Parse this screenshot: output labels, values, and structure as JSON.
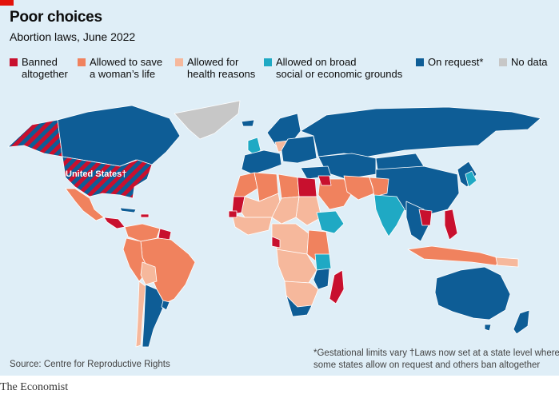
{
  "header": {
    "title": "Poor choices",
    "subtitle": "Abortion laws, June 2022"
  },
  "legend": [
    {
      "label1": "Banned",
      "label2": "altogether",
      "color": "#c8102e"
    },
    {
      "label1": "Allowed to save",
      "label2": "a woman’s life",
      "color": "#f0825e"
    },
    {
      "label1": "Allowed for",
      "label2": "health reasons",
      "color": "#f6b89c"
    },
    {
      "label1": "Allowed on broad",
      "label2": "social or economic grounds",
      "color": "#1fa9c4"
    },
    {
      "label1": "On request*",
      "label2": "",
      "color": "#0e5d96"
    },
    {
      "label1": "No data",
      "label2": "",
      "color": "#c7c7c7"
    }
  ],
  "map": {
    "us_label": "United States†",
    "colors": {
      "banned": "#c8102e",
      "save_life": "#f0825e",
      "health": "#f6b89c",
      "broad": "#1fa9c4",
      "request": "#0e5d96",
      "nodata": "#c7c7c7",
      "ocean": "#dfeef7",
      "border": "#ffffff"
    }
  },
  "footnotes": {
    "source": "Source: Centre for Reproductive Rights",
    "note1": "*Gestational limits vary",
    "note2_line1": "†Laws now set at a state level where",
    "note2_line2": "some states allow on request and others ban altogether"
  },
  "brand": "The Economist"
}
